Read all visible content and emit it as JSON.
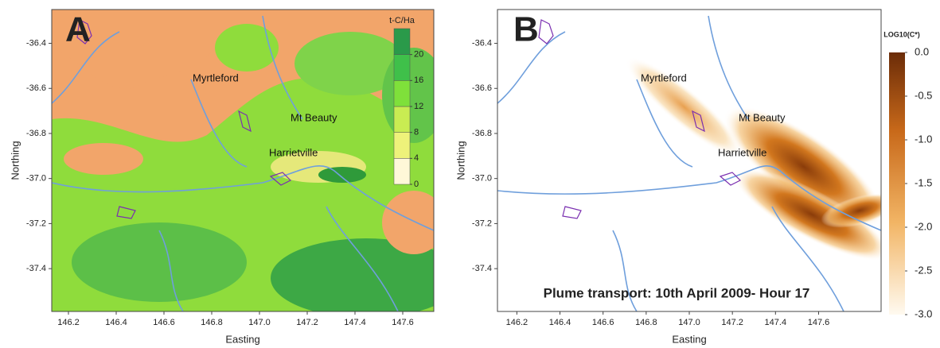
{
  "panels": [
    {
      "label": "A",
      "xlabel": "Easting",
      "ylabel": "Northing",
      "xlim": [
        146.13,
        147.73
      ],
      "ylim": [
        -37.59,
        -36.25
      ],
      "xticks": [
        146.2,
        146.4,
        146.6,
        146.8,
        {
          "value": 147,
          "label": "147.0"
        },
        147.2,
        147.4,
        147.6
      ],
      "yticks": [
        -36.4,
        -36.6,
        -36.8,
        {
          "value": -37,
          "label": "-37.0"
        },
        -37.2,
        -37.4
      ],
      "places": [
        "Myrtleford",
        "Mt Beauty",
        "Harrietville"
      ],
      "colorbar": {
        "title": "t-C/Ha",
        "lim": [
          0,
          24
        ],
        "ticks": [
          0,
          4,
          8,
          12,
          16,
          20
        ]
      }
    },
    {
      "label": "B",
      "xlabel": "Easting",
      "ylabel": "Northing",
      "xlim": [
        146.11,
        147.89
      ],
      "ylim": [
        -37.59,
        -36.25
      ],
      "xticks": [
        146.2,
        146.4,
        146.6,
        146.8,
        {
          "value": 147,
          "label": "147.0"
        },
        147.2,
        147.4,
        147.6
      ],
      "yticks": [
        -36.4,
        -36.6,
        -36.8,
        {
          "value": -37,
          "label": "-37.0"
        },
        -37.2,
        -37.4
      ],
      "places": [
        "Myrtleford",
        "Mt Beauty",
        "Harrietville"
      ],
      "annotation": "Plume transport: 10th April 2009- Hour 17",
      "colorbar": {
        "title": "LOG10(C*)",
        "lim": [
          -3,
          0
        ],
        "ticks": [
          {
            "value": 0,
            "label": "0.0"
          },
          -0.5,
          {
            "value": -1,
            "label": "-1.0"
          },
          -1.5,
          {
            "value": -2,
            "label": "-2.0"
          },
          -2.5,
          {
            "value": -3,
            "label": "-3.0"
          }
        ]
      }
    }
  ]
}
